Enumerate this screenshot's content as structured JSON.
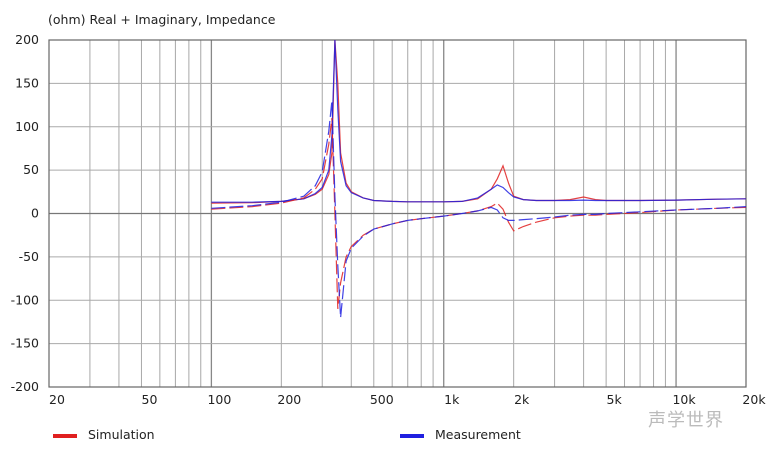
{
  "chart_data": {
    "type": "line",
    "title": "(ohm)  Real + Imaginary, Impedance",
    "xscale": "log",
    "xlim": [
      20,
      20000
    ],
    "ylim": [
      -200,
      200
    ],
    "xticks": [
      20,
      50,
      100,
      200,
      500,
      1000,
      2000,
      5000,
      10000,
      20000
    ],
    "xtick_labels": [
      "20",
      "50",
      "100",
      "200",
      "500",
      "1k",
      "2k",
      "5k",
      "10k",
      "20k"
    ],
    "yticks": [
      200,
      150,
      100,
      50,
      0,
      -50,
      -100,
      -150,
      -200
    ],
    "ytick_labels": [
      "200",
      "150",
      "100",
      "50",
      "0",
      "-50",
      "-100",
      "-150",
      "-200"
    ],
    "grid": true,
    "legend_placement": "bottom",
    "x": [
      100,
      150,
      200,
      250,
      280,
      300,
      320,
      330,
      340,
      350,
      360,
      380,
      400,
      450,
      500,
      600,
      700,
      800,
      1000,
      1200,
      1400,
      1600,
      1700,
      1800,
      1900,
      2000,
      2200,
      2500,
      3000,
      3500,
      4000,
      4500,
      5000,
      7000,
      10000,
      15000,
      20000
    ],
    "series": [
      {
        "name": "Simulation",
        "part": "real",
        "style": "solid",
        "color": "#e02020",
        "values": [
          12,
          12.5,
          14,
          17,
          22,
          28,
          45,
          70,
          200,
          150,
          70,
          35,
          25,
          18,
          15,
          14,
          13.5,
          13.5,
          13.5,
          14,
          17,
          28,
          40,
          55,
          35,
          20,
          16,
          15,
          15,
          16,
          19,
          16,
          15,
          15,
          15.5,
          16.5,
          17
        ]
      },
      {
        "name": "Measurement",
        "part": "real",
        "style": "solid",
        "color": "#2020e0",
        "values": [
          13,
          13,
          14,
          17,
          23,
          30,
          50,
          90,
          200,
          120,
          60,
          32,
          24,
          18,
          15,
          14,
          13.5,
          13.5,
          13.5,
          14,
          18,
          28,
          33,
          30,
          24,
          19,
          16,
          15,
          15,
          15,
          15.5,
          15,
          15,
          15,
          15.5,
          16.5,
          17
        ]
      },
      {
        "name": "Simulation",
        "part": "imaginary",
        "style": "dashed",
        "color": "#e02020",
        "values": [
          5,
          8,
          12,
          18,
          28,
          40,
          80,
          110,
          0,
          -110,
          -80,
          -50,
          -38,
          -25,
          -18,
          -12,
          -8,
          -6,
          -3,
          0,
          3,
          8,
          12,
          5,
          -10,
          -20,
          -15,
          -10,
          -5,
          -3,
          -2,
          -2,
          -1,
          1,
          4,
          6,
          7
        ]
      },
      {
        "name": "Measurement",
        "part": "imaginary",
        "style": "dashed",
        "color": "#2020e0",
        "values": [
          6,
          9,
          13,
          20,
          32,
          48,
          95,
          130,
          20,
          -60,
          -120,
          -55,
          -40,
          -26,
          -18,
          -12,
          -8,
          -6,
          -3,
          0,
          3,
          7,
          4,
          -5,
          -8,
          -8,
          -7,
          -6,
          -4,
          -2,
          -1,
          -1,
          0,
          2,
          4,
          6,
          8
        ]
      }
    ]
  },
  "legend": [
    {
      "label": "Simulation",
      "color": "#e02020"
    },
    {
      "label": "Measurement",
      "color": "#2020e0"
    }
  ],
  "watermark": "声学世界"
}
